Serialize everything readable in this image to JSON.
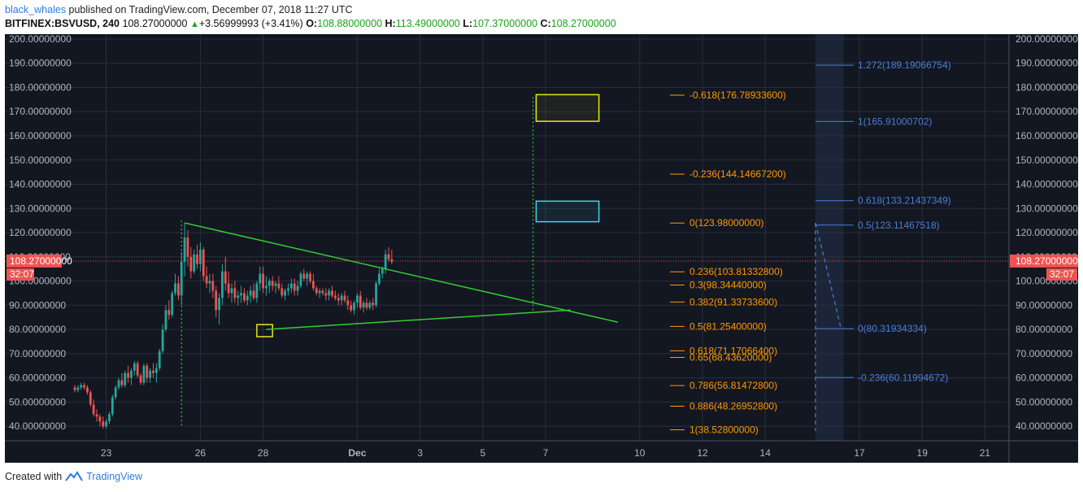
{
  "header": {
    "user": "black_whales",
    "published": "published on TradingView.com, December 07, 2018 11:27 UTC",
    "symbol": "BITFINEX:BSVUSD, 240",
    "last": "108.27000000",
    "change": "+3.56999993 (+3.41%)",
    "o_label": "O:",
    "o": "108.88000000",
    "h_label": "H:",
    "h": "113.49000000",
    "l_label": "L:",
    "l": "107.37000000",
    "c_label": "C:",
    "c": "108.27000000"
  },
  "footer": {
    "created": "Created with",
    "brand": "TradingView"
  },
  "colors": {
    "bg": "#131722",
    "grid": "#2a2e39",
    "up": "#26a69a",
    "down": "#ef5350",
    "fib_left": "#ff9800",
    "fib_right": "#4a7fd4",
    "trend": "#33cc33",
    "box_yellow": "#e6e617",
    "box_cyan": "#3ed6e6",
    "price_line": "#ef5350"
  },
  "chart_data": {
    "type": "candlestick",
    "ylim": [
      34,
      202
    ],
    "y_ticks": [
      "200.00000000",
      "190.00000000",
      "180.00000000",
      "170.00000000",
      "160.00000000",
      "150.00000000",
      "140.00000000",
      "130.00000000",
      "120.00000000",
      "110.00000000",
      "100.00000000",
      "90.00000000",
      "80.00000000",
      "70.00000000",
      "60.00000000",
      "50.00000000",
      "40.00000000"
    ],
    "x_ticks": [
      {
        "label": "23",
        "bar": 10
      },
      {
        "label": "26",
        "bar": 40
      },
      {
        "label": "28",
        "bar": 60
      },
      {
        "label": "Dec",
        "bar": 90
      },
      {
        "label": "3",
        "bar": 110
      },
      {
        "label": "5",
        "bar": 130
      },
      {
        "label": "7",
        "bar": 150
      },
      {
        "label": "10",
        "bar": 180
      },
      {
        "label": "12",
        "bar": 200
      },
      {
        "label": "14",
        "bar": 220
      },
      {
        "label": "17",
        "bar": 250
      },
      {
        "label": "19",
        "bar": 270
      },
      {
        "label": "21",
        "bar": 290
      }
    ],
    "candles": [
      [
        56,
        57,
        54,
        55
      ],
      [
        55,
        57,
        54,
        56
      ],
      [
        56,
        58,
        55,
        57
      ],
      [
        57,
        58,
        55,
        56
      ],
      [
        56,
        57,
        53,
        54
      ],
      [
        54,
        55,
        48,
        49
      ],
      [
        49,
        51,
        44,
        45
      ],
      [
        45,
        47,
        42,
        44
      ],
      [
        44,
        45,
        40,
        42
      ],
      [
        42,
        44,
        39,
        40
      ],
      [
        40,
        43,
        39,
        42
      ],
      [
        42,
        46,
        41,
        45
      ],
      [
        45,
        53,
        44,
        52
      ],
      [
        52,
        57,
        51,
        56
      ],
      [
        56,
        60,
        55,
        59
      ],
      [
        59,
        62,
        56,
        57
      ],
      [
        57,
        63,
        56,
        62
      ],
      [
        62,
        65,
        58,
        60
      ],
      [
        60,
        64,
        57,
        63
      ],
      [
        63,
        67,
        61,
        66
      ],
      [
        66,
        67,
        60,
        61
      ],
      [
        61,
        62,
        57,
        58
      ],
      [
        58,
        66,
        57,
        65
      ],
      [
        65,
        66,
        58,
        60
      ],
      [
        60,
        64,
        58,
        63
      ],
      [
        63,
        66,
        60,
        62
      ],
      [
        62,
        66,
        58,
        64
      ],
      [
        64,
        72,
        63,
        71
      ],
      [
        71,
        82,
        70,
        80
      ],
      [
        80,
        90,
        79,
        88
      ],
      [
        88,
        92,
        84,
        86
      ],
      [
        86,
        96,
        85,
        95
      ],
      [
        95,
        103,
        94,
        99
      ],
      [
        99,
        102,
        92,
        94
      ],
      [
        94,
        112,
        90,
        108
      ],
      [
        108,
        124,
        102,
        118
      ],
      [
        118,
        121,
        106,
        110
      ],
      [
        110,
        114,
        101,
        104
      ],
      [
        104,
        113,
        103,
        111
      ],
      [
        111,
        115,
        105,
        107
      ],
      [
        107,
        116,
        104,
        113
      ],
      [
        113,
        114,
        100,
        102
      ],
      [
        102,
        106,
        97,
        99
      ],
      [
        99,
        103,
        95,
        100
      ],
      [
        100,
        103,
        93,
        96
      ],
      [
        96,
        98,
        85,
        88
      ],
      [
        88,
        95,
        82,
        93
      ],
      [
        93,
        107,
        90,
        104
      ],
      [
        104,
        110,
        96,
        99
      ],
      [
        99,
        104,
        93,
        95
      ],
      [
        95,
        99,
        91,
        97
      ],
      [
        97,
        100,
        91,
        93
      ],
      [
        93,
        96,
        90,
        94
      ],
      [
        94,
        98,
        91,
        95
      ],
      [
        95,
        97,
        91,
        92
      ],
      [
        92,
        96,
        90,
        94
      ],
      [
        94,
        98,
        91,
        96
      ],
      [
        96,
        99,
        92,
        93
      ],
      [
        93,
        100,
        91,
        99
      ],
      [
        99,
        106,
        96,
        103
      ],
      [
        103,
        106,
        95,
        97
      ],
      [
        97,
        102,
        94,
        98
      ],
      [
        98,
        101,
        95,
        100
      ],
      [
        100,
        102,
        96,
        98
      ],
      [
        98,
        100,
        95,
        99
      ],
      [
        99,
        102,
        96,
        97
      ],
      [
        97,
        99,
        93,
        94
      ],
      [
        94,
        97,
        92,
        96
      ],
      [
        96,
        99,
        94,
        97
      ],
      [
        97,
        101,
        95,
        99
      ],
      [
        99,
        101,
        94,
        96
      ],
      [
        96,
        100,
        94,
        98
      ],
      [
        98,
        104,
        97,
        103
      ],
      [
        103,
        105,
        100,
        101
      ],
      [
        101,
        104,
        98,
        103
      ],
      [
        103,
        104,
        99,
        100
      ],
      [
        100,
        103,
        96,
        97
      ],
      [
        97,
        98,
        94,
        95
      ],
      [
        95,
        97,
        93,
        96
      ],
      [
        96,
        97,
        94,
        95
      ],
      [
        95,
        97,
        92,
        94
      ],
      [
        94,
        97,
        92,
        96
      ],
      [
        96,
        98,
        93,
        94
      ],
      [
        94,
        96,
        92,
        93
      ],
      [
        93,
        95,
        90,
        92
      ],
      [
        92,
        95,
        90,
        94
      ],
      [
        94,
        96,
        91,
        92
      ],
      [
        92,
        94,
        88,
        90
      ],
      [
        90,
        92,
        87,
        88
      ],
      [
        88,
        92,
        86,
        91
      ],
      [
        91,
        95,
        89,
        94
      ],
      [
        94,
        96,
        88,
        89
      ],
      [
        89,
        92,
        87,
        91
      ],
      [
        91,
        93,
        88,
        89
      ],
      [
        89,
        92,
        88,
        91
      ],
      [
        91,
        93,
        88,
        90
      ],
      [
        90,
        100,
        89,
        99
      ],
      [
        99,
        105,
        98,
        103
      ],
      [
        103,
        106,
        101,
        105
      ],
      [
        105,
        113,
        103,
        111
      ],
      [
        111,
        114,
        108,
        109
      ],
      [
        109,
        113,
        107,
        108
      ]
    ],
    "fib_left": [
      {
        "label": "-0.618(176.78933600)",
        "value": 176.789336
      },
      {
        "label": "-0.236(144.14667200)",
        "value": 144.146672
      },
      {
        "label": "0(123.98000000)",
        "value": 123.98
      },
      {
        "label": "0.236(103.81332800)",
        "value": 103.813328
      },
      {
        "label": "0.3(98.34440000)",
        "value": 98.3444
      },
      {
        "label": "0.382(91.33733600)",
        "value": 91.337336
      },
      {
        "label": "0.5(81.25400000)",
        "value": 81.254
      },
      {
        "label": "0.618(71.17066400)",
        "value": 71.170664
      },
      {
        "label": "0.65(68.43620000)",
        "value": 68.4362
      },
      {
        "label": "0.786(56.81472800)",
        "value": 56.814728
      },
      {
        "label": "0.886(48.26952800)",
        "value": 48.269528
      },
      {
        "label": "1(38.52800000)",
        "value": 38.528
      }
    ],
    "fib_right": [
      {
        "label": "1.272(189.19066754)",
        "value": 189.19066754
      },
      {
        "label": "1(165.91000702)",
        "value": 165.91000702
      },
      {
        "label": "0.618(133.21437349)",
        "value": 133.21437349
      },
      {
        "label": "0.5(123.11467518)",
        "value": 123.11467518
      },
      {
        "label": "0(80.31934334)",
        "value": 80.31934334
      },
      {
        "label": "-0.236(60.11994672)",
        "value": 60.11994672
      }
    ],
    "price_label": "108.27000000",
    "price_value": 108.27,
    "countdown": "32:07",
    "trend_upper": [
      [
        35,
        124
      ],
      [
        173,
        83
      ]
    ],
    "trend_lower": [
      [
        61,
        80
      ],
      [
        158,
        88
      ]
    ],
    "box_yellow_small": [
      [
        58,
        77
      ],
      [
        63,
        82
      ]
    ],
    "box_yellow_big": [
      [
        147,
        166
      ],
      [
        167,
        177
      ]
    ],
    "box_cyan": [
      [
        147,
        124.5
      ],
      [
        167,
        133
      ]
    ],
    "vdot_1": [
      34,
      40,
      125
    ],
    "vdot_2": [
      146,
      87,
      176
    ],
    "dashed_path": [
      [
        236,
        124
      ],
      [
        240,
        103
      ],
      [
        244,
        81
      ]
    ],
    "dashed_vertical": [
      236,
      38,
      124
    ],
    "shade_range": [
      236,
      245
    ]
  }
}
